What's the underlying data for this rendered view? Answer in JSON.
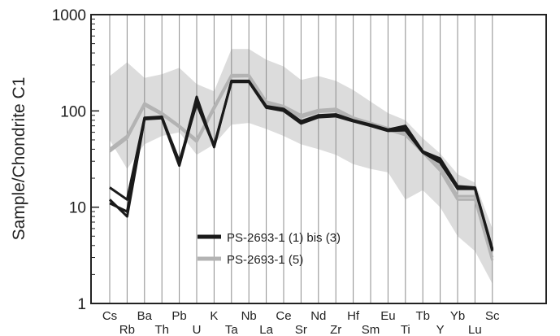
{
  "chart_data": {
    "type": "line",
    "ylabel": "Sample/Chondrite C1",
    "yscale": "log",
    "ylim": [
      1,
      1000
    ],
    "ytick_values": [
      1,
      10,
      100,
      1000
    ],
    "ytick_labels": [
      "1",
      "10",
      "100",
      "1000"
    ],
    "grid": "vertical",
    "legend_position": "lower-left",
    "categories": [
      "Cs",
      "Rb",
      "Ba",
      "Th",
      "Pb",
      "U",
      "K",
      "Ta",
      "Nb",
      "La",
      "Ce",
      "Sr",
      "Nd",
      "Zr",
      "Hf",
      "Sm",
      "Eu",
      "Ti",
      "Tb",
      "Y",
      "Yb",
      "Lu",
      "Sc"
    ],
    "series": [
      {
        "name": "PS-2693-1 (1) bis (3)",
        "color": "#1a1a1a",
        "lines": [
          [
            16,
            12,
            85,
            87,
            28,
            140,
            42,
            205,
            205,
            112,
            105,
            78,
            90,
            92,
            80,
            72,
            64,
            70,
            38,
            32,
            16.5,
            16,
            3.5
          ],
          [
            12,
            8,
            82,
            84,
            27,
            125,
            44,
            200,
            200,
            108,
            100,
            74,
            86,
            88,
            78,
            70,
            62,
            63,
            37,
            29,
            15.5,
            15.5,
            3.6
          ],
          [
            11,
            9,
            83,
            86,
            30,
            118,
            43,
            203,
            202,
            110,
            102,
            76,
            88,
            90,
            79,
            71,
            63,
            66,
            38,
            30,
            16,
            15.8,
            3.7
          ]
        ]
      },
      {
        "name": "PS-2693-1 (5)",
        "color": "#b3b3b3",
        "lines": [
          [
            40,
            55,
            120,
            95,
            70,
            50,
            110,
            235,
            235,
            125,
            112,
            90,
            102,
            105,
            85,
            75,
            66,
            58,
            38,
            26,
            13,
            13,
            3.0
          ],
          [
            38,
            52,
            115,
            92,
            68,
            48,
            105,
            228,
            230,
            120,
            108,
            86,
            98,
            100,
            82,
            73,
            64,
            56,
            37,
            24,
            12,
            12,
            2.8
          ]
        ]
      }
    ],
    "range_band": {
      "color": "#dcdcdc",
      "upper": [
        230,
        320,
        220,
        240,
        280,
        190,
        160,
        440,
        440,
        340,
        290,
        210,
        230,
        205,
        165,
        125,
        95,
        80,
        52,
        36,
        22,
        18,
        6
      ],
      "lower": [
        50,
        25,
        45,
        55,
        60,
        35,
        45,
        72,
        75,
        65,
        55,
        45,
        40,
        35,
        28,
        25,
        23,
        12,
        15,
        10,
        5,
        3.5,
        1.6
      ]
    }
  }
}
